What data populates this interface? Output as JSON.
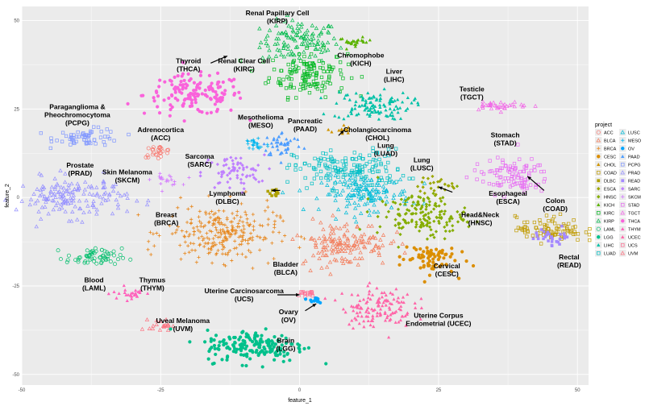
{
  "chart_data": {
    "type": "scatter",
    "xlabel": "feature_1",
    "ylabel": "feature_2",
    "xlim": [
      -50,
      52
    ],
    "ylim": [
      -53,
      54
    ],
    "x_ticks": [
      -50,
      -25,
      0,
      25,
      50
    ],
    "y_ticks": [
      50,
      25,
      0,
      -25,
      -50
    ],
    "tick_labels_x": [
      "-50",
      "-25",
      "0",
      "25",
      "50"
    ],
    "tick_labels_y": [
      "50",
      "25",
      "0",
      "-25",
      "-50"
    ],
    "grid": true,
    "legend": {
      "title": "project",
      "position": "right",
      "items": [
        {
          "label": "ACC",
          "color": "#F8766D",
          "shape": "circle-open"
        },
        {
          "label": "BLCA",
          "color": "#F37B59",
          "shape": "triangle-open"
        },
        {
          "label": "BRCA",
          "color": "#E7861B",
          "shape": "plus"
        },
        {
          "label": "CESC",
          "color": "#DB8E00",
          "shape": "circle"
        },
        {
          "label": "CHOL",
          "color": "#CF9400",
          "shape": "triangle"
        },
        {
          "label": "COAD",
          "color": "#C09B00",
          "shape": "square-open"
        },
        {
          "label": "DLBC",
          "color": "#AFA100",
          "shape": "square"
        },
        {
          "label": "ESCA",
          "color": "#9CA700",
          "shape": "diamond"
        },
        {
          "label": "HNSC",
          "color": "#85AD00",
          "shape": "diamond"
        },
        {
          "label": "KICH",
          "color": "#5BB300",
          "shape": "triangle"
        },
        {
          "label": "KIRC",
          "color": "#00B81F",
          "shape": "square-open"
        },
        {
          "label": "KIRP",
          "color": "#00BB4B",
          "shape": "triangle-open"
        },
        {
          "label": "LAML",
          "color": "#00BE6C",
          "shape": "circle-open"
        },
        {
          "label": "LGG",
          "color": "#00C08B",
          "shape": "circle"
        },
        {
          "label": "LIHC",
          "color": "#00C1A7",
          "shape": "triangle"
        },
        {
          "label": "LUAD",
          "color": "#00BFC4",
          "shape": "square-open"
        },
        {
          "label": "LUSC",
          "color": "#00BCD8",
          "shape": "triangle-open"
        },
        {
          "label": "MESO",
          "color": "#00B5EE",
          "shape": "plus"
        },
        {
          "label": "OV",
          "color": "#00A5FF",
          "shape": "circle"
        },
        {
          "label": "PAAD",
          "color": "#4D9DFF",
          "shape": "triangle"
        },
        {
          "label": "PCPG",
          "color": "#7F96FF",
          "shape": "square-open"
        },
        {
          "label": "PRAD",
          "color": "#9590FF",
          "shape": "triangle-open"
        },
        {
          "label": "READ",
          "color": "#A58AFF",
          "shape": "square"
        },
        {
          "label": "SARC",
          "color": "#BF80FF",
          "shape": "diamond"
        },
        {
          "label": "SKCM",
          "color": "#D378FF",
          "shape": "plus"
        },
        {
          "label": "STAD",
          "color": "#E76BF3",
          "shape": "square-open"
        },
        {
          "label": "TGCT",
          "color": "#F265E7",
          "shape": "triangle-open"
        },
        {
          "label": "THCA",
          "color": "#FA62DB",
          "shape": "circle"
        },
        {
          "label": "THYM",
          "color": "#FF62BC",
          "shape": "triangle"
        },
        {
          "label": "UCEC",
          "color": "#FF66A8",
          "shape": "triangle"
        },
        {
          "label": "UCS",
          "color": "#FF6C91",
          "shape": "square-open"
        },
        {
          "label": "UVM",
          "color": "#FC717F",
          "shape": "triangle-open"
        }
      ]
    },
    "clusters": [
      {
        "project": "KIRP",
        "cx": 0,
        "cy": 44,
        "sx": 3.5,
        "sy": 3,
        "n": 120
      },
      {
        "project": "KIRC",
        "cx": 1.5,
        "cy": 35,
        "sx": 3.5,
        "sy": 3.2,
        "n": 140
      },
      {
        "project": "KICH",
        "cx": 10,
        "cy": 44,
        "sx": 1.5,
        "sy": 0.6,
        "n": 25
      },
      {
        "project": "THCA",
        "cx": -19,
        "cy": 29,
        "sx": 4.5,
        "sy": 2.8,
        "n": 150
      },
      {
        "project": "PCPG",
        "cx": -38,
        "cy": 17,
        "sx": 3,
        "sy": 1.2,
        "n": 60
      },
      {
        "project": "ACC",
        "cx": -25.5,
        "cy": 13,
        "sx": 1.3,
        "sy": 0.8,
        "n": 25
      },
      {
        "project": "SKCM",
        "cx": -24,
        "cy": 5,
        "sx": 1.3,
        "sy": 0.8,
        "n": 20
      },
      {
        "project": "SARC",
        "cx": -12,
        "cy": 7,
        "sx": 2.8,
        "sy": 2.5,
        "n": 70
      },
      {
        "project": "MESO",
        "cx": -8,
        "cy": 15,
        "sx": 1.3,
        "sy": 1.3,
        "n": 25
      },
      {
        "project": "PAAD",
        "cx": -3,
        "cy": 15,
        "sx": 1.8,
        "sy": 1.8,
        "n": 45
      },
      {
        "project": "CHOL",
        "cx": 7.5,
        "cy": 19,
        "sx": 0.8,
        "sy": 0.8,
        "n": 15
      },
      {
        "project": "LIHC",
        "cx": 13,
        "cy": 26,
        "sx": 3.5,
        "sy": 2,
        "n": 110
      },
      {
        "project": "LUAD",
        "cx": 9,
        "cy": 8,
        "sx": 5,
        "sy": 2.8,
        "n": 160
      },
      {
        "project": "LUSC",
        "cx": 12,
        "cy": 1,
        "sx": 4,
        "sy": 2.5,
        "n": 140
      },
      {
        "project": "PRAD",
        "cx": -41,
        "cy": 0,
        "sx": 5,
        "sy": 2.8,
        "n": 160
      },
      {
        "project": "BRCA",
        "cx": -14,
        "cy": -10,
        "sx": 5,
        "sy": 4,
        "n": 260
      },
      {
        "project": "DLBC",
        "cx": -5,
        "cy": 1,
        "sx": 0.6,
        "sy": 0.6,
        "n": 12
      },
      {
        "project": "LAML",
        "cx": -37,
        "cy": -17,
        "sx": 2.5,
        "sy": 1.3,
        "n": 60
      },
      {
        "project": "THYM",
        "cx": -30,
        "cy": -27,
        "sx": 1.8,
        "sy": 1,
        "n": 25
      },
      {
        "project": "UVM",
        "cx": -25,
        "cy": -36,
        "sx": 1,
        "sy": 0.8,
        "n": 20
      },
      {
        "project": "LGG",
        "cx": -8,
        "cy": -42,
        "sx": 4.5,
        "sy": 2.3,
        "n": 170
      },
      {
        "project": "BLCA",
        "cx": 8,
        "cy": -13,
        "sx": 4,
        "sy": 3.2,
        "n": 150
      },
      {
        "project": "HNSC",
        "cx": 22,
        "cy": -5,
        "sx": 4,
        "sy": 3,
        "n": 160
      },
      {
        "project": "ESCA",
        "cx": 25,
        "cy": 3,
        "sx": 1.8,
        "sy": 1.3,
        "n": 25
      },
      {
        "project": "CESC",
        "cx": 23,
        "cy": -17,
        "sx": 2.5,
        "sy": 2.3,
        "n": 70
      },
      {
        "project": "STAD",
        "cx": 38,
        "cy": 6,
        "sx": 3.5,
        "sy": 2.5,
        "n": 100
      },
      {
        "project": "COAD",
        "cx": 45,
        "cy": -9,
        "sx": 3,
        "sy": 1.8,
        "n": 90
      },
      {
        "project": "READ",
        "cx": 46,
        "cy": -11,
        "sx": 1.8,
        "sy": 1.3,
        "n": 30
      },
      {
        "project": "TGCT",
        "cx": 36,
        "cy": 26,
        "sx": 2.5,
        "sy": 0.6,
        "n": 35
      },
      {
        "project": "UCEC",
        "cx": 14,
        "cy": -31,
        "sx": 3.2,
        "sy": 2.8,
        "n": 130
      },
      {
        "project": "UCS",
        "cx": 1,
        "cy": -27,
        "sx": 0.8,
        "sy": 0.6,
        "n": 15
      },
      {
        "project": "OV",
        "cx": 3,
        "cy": -29,
        "sx": 0.8,
        "sy": 0.5,
        "n": 12
      }
    ],
    "annotations": [
      {
        "text": [
          "Renal Papillary Cell",
          "(KIRP)"
        ],
        "x": -4,
        "y": 51.5
      },
      {
        "text": [
          "Chromophobe",
          "(KICH)"
        ],
        "x": 11,
        "y": 39.5
      },
      {
        "text": [
          "Thyroid",
          "(THCA)"
        ],
        "x": -20,
        "y": 38
      },
      {
        "text": [
          "Renal Clear Cell",
          "(KIRC)"
        ],
        "x": -10,
        "y": 38
      },
      {
        "text": [
          "Liver",
          "(LIHC)"
        ],
        "x": 17,
        "y": 35
      },
      {
        "text": [
          "Testicle",
          "(TGCT)"
        ],
        "x": 31,
        "y": 30
      },
      {
        "text": [
          "Paraganglioma &",
          "Pheochromocytoma",
          "(PCPG)"
        ],
        "x": -40,
        "y": 25
      },
      {
        "text": [
          "Adrenocortica",
          "(ACC)"
        ],
        "x": -25,
        "y": 18.5
      },
      {
        "text": [
          "Mesothelioma",
          "(MESO)"
        ],
        "x": -7,
        "y": 22
      },
      {
        "text": [
          "Pancreatic",
          "(PAAD)"
        ],
        "x": 1,
        "y": 21
      },
      {
        "text": [
          "Cholangiocarcinoma",
          "(CHOL)"
        ],
        "x": 14,
        "y": 18.5
      },
      {
        "text": [
          "Stomach",
          "(STAD)"
        ],
        "x": 37,
        "y": 17
      },
      {
        "text": [
          "Sarcoma",
          "(SARC)"
        ],
        "x": -18,
        "y": 11
      },
      {
        "text": [
          "Skin Melanoma",
          "(SKCM)"
        ],
        "x": -31,
        "y": 6.5
      },
      {
        "text": [
          "Lung",
          "(LUAD)"
        ],
        "x": 15.5,
        "y": 14
      },
      {
        "text": [
          "Lung",
          "(LUSC)"
        ],
        "x": 22,
        "y": 10
      },
      {
        "text": [
          "Prostate",
          "(PRAD)"
        ],
        "x": -39.5,
        "y": 8.5
      },
      {
        "text": [
          "Lymphoma",
          "(DLBC)"
        ],
        "x": -13,
        "y": 0.5
      },
      {
        "text": [
          "Esophageal",
          "(ESCA)"
        ],
        "x": 37.5,
        "y": 0.5
      },
      {
        "text": [
          "Colon",
          "(COAD)"
        ],
        "x": 46,
        "y": -1.5
      },
      {
        "text": [
          "Breast",
          "(BRCA)"
        ],
        "x": -24,
        "y": -5.5
      },
      {
        "text": [
          "Head&Neck",
          "(HNSC)"
        ],
        "x": 32.5,
        "y": -5.5
      },
      {
        "text": [
          "Rectal",
          "(READ)"
        ],
        "x": 48.5,
        "y": -17.5
      },
      {
        "text": [
          "Bladder",
          "(BLCA)"
        ],
        "x": -2.5,
        "y": -19.5
      },
      {
        "text": [
          "Blood",
          "(LAML)"
        ],
        "x": -37,
        "y": -24
      },
      {
        "text": [
          "Cervical",
          "(CESC)"
        ],
        "x": 26.5,
        "y": -20
      },
      {
        "text": [
          "Thymus",
          "(THYM)"
        ],
        "x": -26.5,
        "y": -24
      },
      {
        "text": [
          "Uterine Carcinosarcoma",
          "(UCS)"
        ],
        "x": -10,
        "y": -27
      },
      {
        "text": [
          "Ovary",
          "(OV)"
        ],
        "x": -2,
        "y": -33
      },
      {
        "text": [
          "Uterine Corpus",
          "Endometrial (UCEC)"
        ],
        "x": 25,
        "y": -34
      },
      {
        "text": [
          "Uveal Melanoma",
          "(UVM)"
        ],
        "x": -21,
        "y": -35.5
      },
      {
        "text": [
          "Brain",
          "(LGG)"
        ],
        "x": -2.5,
        "y": -41
      }
    ],
    "arrows": [
      {
        "from": [
          -16,
          38
        ],
        "to": [
          -13,
          40
        ]
      },
      {
        "from": [
          7,
          17.5
        ],
        "to": [
          8,
          19
        ]
      },
      {
        "from": [
          27.5,
          1.5
        ],
        "to": [
          25,
          3
        ]
      },
      {
        "from": [
          44,
          2
        ],
        "to": [
          41,
          6
        ]
      },
      {
        "from": [
          -3.5,
          2
        ],
        "to": [
          -5,
          2
        ]
      },
      {
        "from": [
          -4,
          -27.5
        ],
        "to": [
          0,
          -27.5
        ]
      },
      {
        "from": [
          1,
          -32
        ],
        "to": [
          3,
          -30
        ]
      }
    ]
  }
}
